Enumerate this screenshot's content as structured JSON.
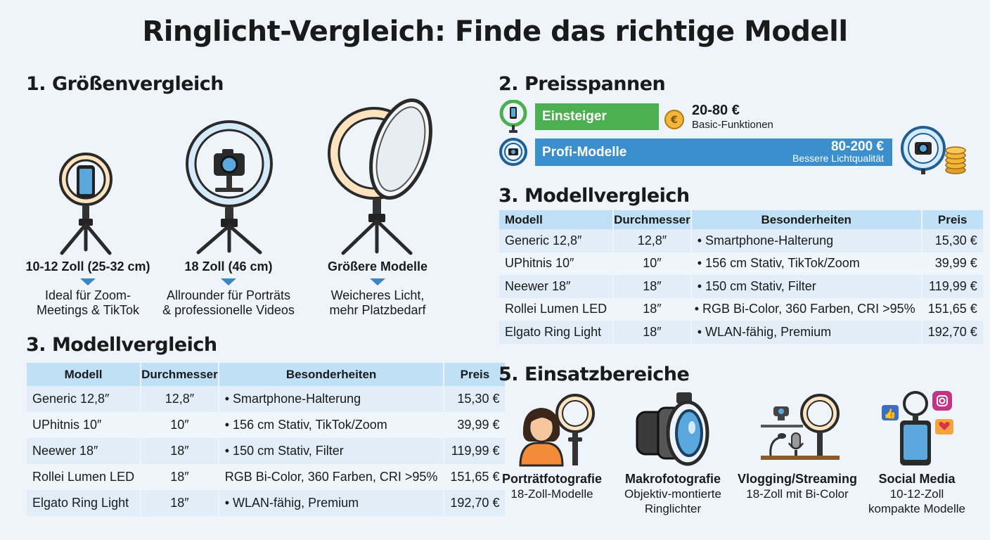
{
  "title": "Ringlicht-Vergleich: Finde das richtige Modell",
  "sizes": {
    "heading": "1. Größenvergleich",
    "items": [
      {
        "label": "10-12 Zoll (25-32 cm)",
        "desc1": "Ideal für Zoom-",
        "desc2": "Meetings & TikTok"
      },
      {
        "label": "18 Zoll (46 cm)",
        "desc1": "Allrounder für Porträts",
        "desc2": "& professionelle Videos"
      },
      {
        "label": "Größere Modelle",
        "desc1": "Weicheres Licht,",
        "desc2": "mehr Platzbedarf"
      }
    ]
  },
  "prices": {
    "heading": "2. Preisspannen",
    "entry": {
      "label": "Einsteiger",
      "range": "20-80 €",
      "note": "Basic-Funktionen",
      "color": "#4caf50",
      "coin_symbol": "€"
    },
    "pro": {
      "label": "Profi-Modelle",
      "range": "80-200 €",
      "note": "Bessere Lichtqualität",
      "color": "#3a8fcc"
    }
  },
  "comparison": {
    "heading": "3. Modellvergleich",
    "columns": [
      "Modell",
      "Durchmesser",
      "Besonderheiten",
      "Preis"
    ],
    "rows_left": [
      {
        "model": "Generic 12,8″",
        "diameter": "12,8″",
        "features": "• Smartphone-Halterung",
        "price": "15,30 €"
      },
      {
        "model": "UPhitnis 10″",
        "diameter": "10″",
        "features": "• 156 cm Stativ, TikTok/Zoom",
        "price": "39,99 €"
      },
      {
        "model": "Neewer 18″",
        "diameter": "18″",
        "features": "• 150 cm Stativ, Filter",
        "price": "119,99 €"
      },
      {
        "model": "Rollei Lumen LED",
        "diameter": "18″",
        "features": "RGB Bi-Color, 360 Farben, CRI >95%",
        "price": "151,65 €"
      },
      {
        "model": "Elgato Ring Light",
        "diameter": "18″",
        "features": "• WLAN-fähig, Premium",
        "price": "192,70 €"
      }
    ],
    "rows_right": [
      {
        "model": "Generic 12,8″",
        "diameter": "12,8″",
        "features": "•   Smartphone-Halterung",
        "price": "15,30 €"
      },
      {
        "model": "UPhitnis 10″",
        "diameter": "10″",
        "features": "•   156 cm Stativ, TikTok/Zoom",
        "price": "39,99 €"
      },
      {
        "model": "Neewer 18″",
        "diameter": "18″",
        "features": "•   150 cm Stativ, Filter",
        "price": "119,99 €"
      },
      {
        "model": "Rollei Lumen LED",
        "diameter": "18″",
        "features": "• RGB Bi-Color, 360 Farben, CRI >95%",
        "price": "151,65 €"
      },
      {
        "model": "Elgato Ring Light",
        "diameter": "18″",
        "features": "•   WLAN-fähig, Premium",
        "price": "192,70 €"
      }
    ]
  },
  "uses": {
    "heading": "5. Einsatzbereiche",
    "items": [
      {
        "title": "Porträtfotografie",
        "line1": "18-Zoll-Modelle",
        "line2": ""
      },
      {
        "title": "Makrofotografie",
        "line1": "Objektiv-montierte",
        "line2": "Ringlichter"
      },
      {
        "title": "Vlogging/Streaming",
        "line1": "18-Zoll mit Bi-Color",
        "line2": ""
      },
      {
        "title": "Social Media",
        "line1": "10-12-Zoll",
        "line2": "kompakte Modelle"
      }
    ]
  }
}
